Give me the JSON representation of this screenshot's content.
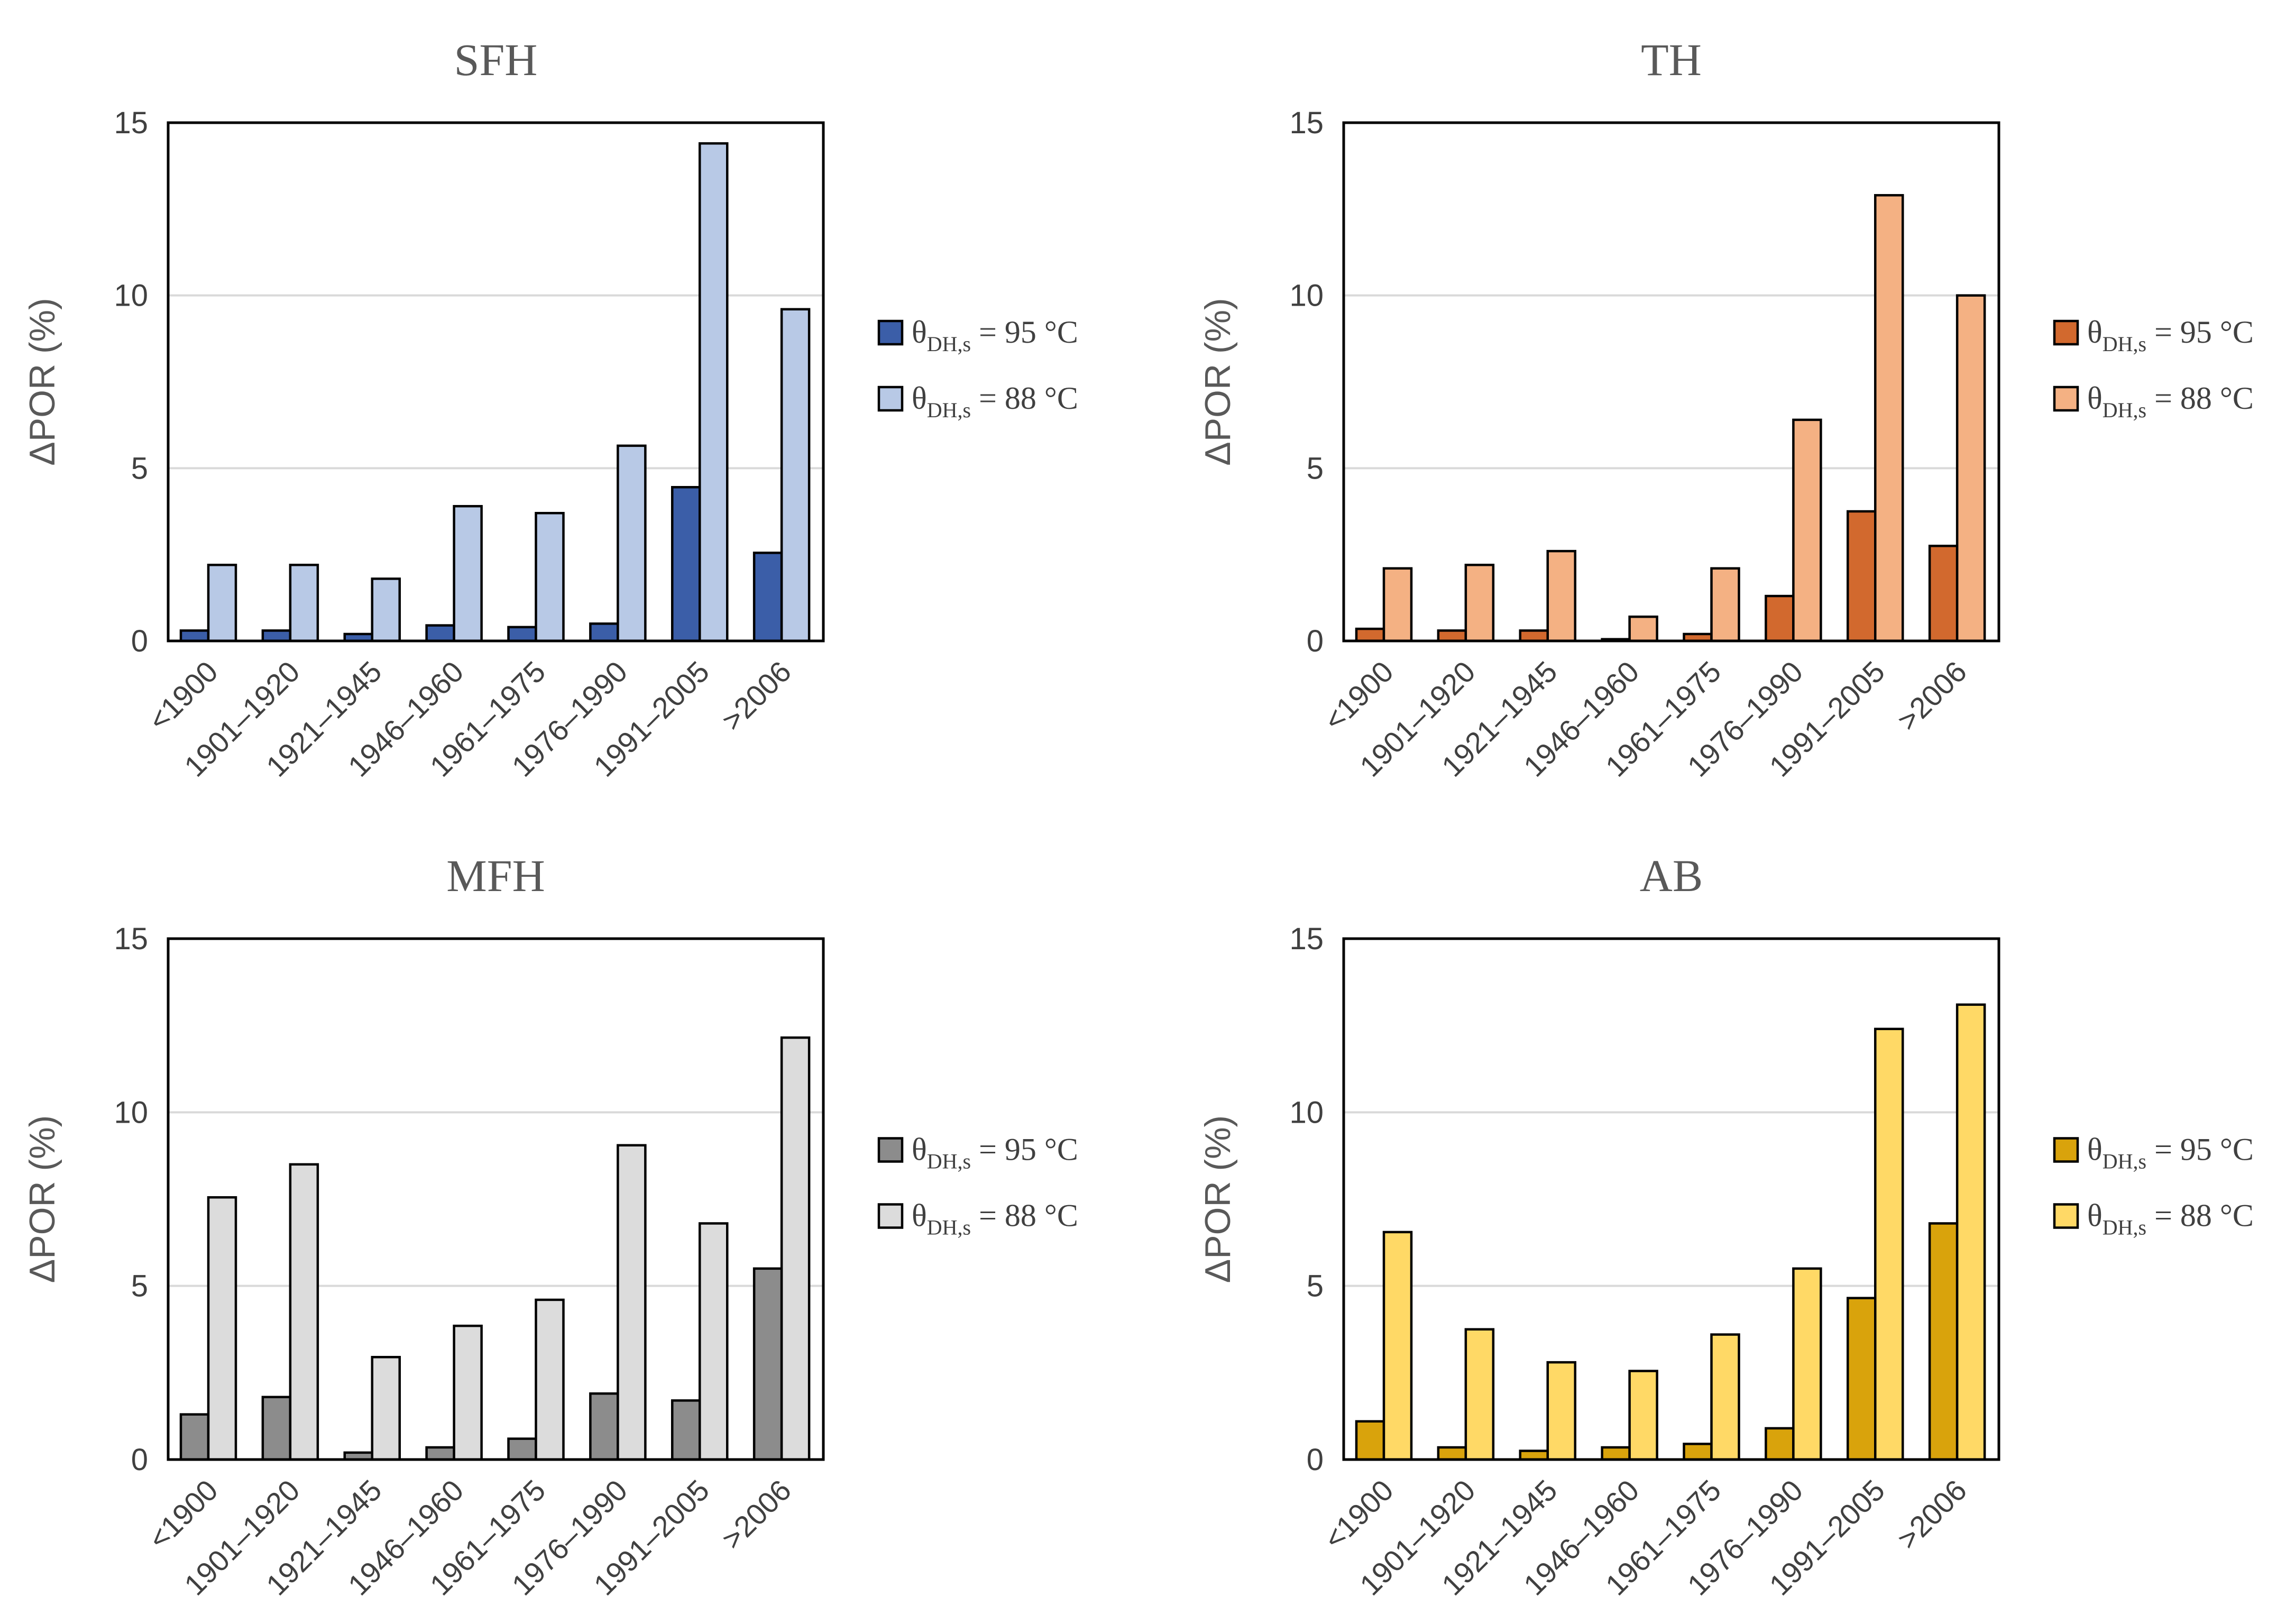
{
  "chart_data": [
    {
      "type": "bar",
      "title": "SFH",
      "ylabel": "ΔPOR (%)",
      "xlabel": "",
      "ylim": [
        0,
        15
      ],
      "yticks": [
        0,
        5,
        10,
        15
      ],
      "grid": true,
      "legend_position": "right",
      "categories": [
        "<1900",
        "1901–1920",
        "1921–1945",
        "1946–1960",
        "1961–1975",
        "1976–1990",
        "1991–2005",
        ">2006"
      ],
      "series": [
        {
          "name": "θDH,s = 95 °C",
          "legend": {
            "symbol": "θ",
            "sub": "DH,s",
            "rest": " = 95 °C"
          },
          "color": "#3b5ea8",
          "values": [
            0.3,
            0.3,
            0.2,
            0.45,
            0.4,
            0.5,
            4.45,
            2.55
          ]
        },
        {
          "name": "θDH,s = 88 °C",
          "legend": {
            "symbol": "θ",
            "sub": "DH,s",
            "rest": " = 88 °C"
          },
          "color": "#b8c9e6",
          "values": [
            2.2,
            2.2,
            1.8,
            3.9,
            3.7,
            5.65,
            14.4,
            9.6
          ]
        }
      ]
    },
    {
      "type": "bar",
      "title": "TH",
      "ylabel": "ΔPOR (%)",
      "xlabel": "",
      "ylim": [
        0,
        15
      ],
      "yticks": [
        0,
        5,
        10,
        15
      ],
      "grid": true,
      "legend_position": "right",
      "categories": [
        "<1900",
        "1901–1920",
        "1921–1945",
        "1946–1960",
        "1961–1975",
        "1976–1990",
        "1991–2005",
        ">2006"
      ],
      "series": [
        {
          "name": "θDH,s = 95 °C",
          "legend": {
            "symbol": "θ",
            "sub": "DH,s",
            "rest": " = 95 °C"
          },
          "color": "#d2692e",
          "values": [
            0.35,
            0.3,
            0.3,
            0.05,
            0.2,
            1.3,
            3.75,
            2.75
          ]
        },
        {
          "name": "θDH,s = 88 °C",
          "legend": {
            "symbol": "θ",
            "sub": "DH,s",
            "rest": " = 88 °C"
          },
          "color": "#f4b183",
          "values": [
            2.1,
            2.2,
            2.6,
            0.7,
            2.1,
            6.4,
            12.9,
            10.0
          ]
        }
      ]
    },
    {
      "type": "bar",
      "title": "MFH",
      "ylabel": "ΔPOR (%)",
      "xlabel": "",
      "ylim": [
        0,
        15
      ],
      "yticks": [
        0,
        5,
        10,
        15
      ],
      "grid": true,
      "legend_position": "right",
      "categories": [
        "<1900",
        "1901–1920",
        "1921–1945",
        "1946–1960",
        "1961–1975",
        "1976–1990",
        "1991–2005",
        ">2006"
      ],
      "series": [
        {
          "name": "θDH,s = 95 °C",
          "legend": {
            "symbol": "θ",
            "sub": "DH,s",
            "rest": " = 95 °C"
          },
          "color": "#8c8c8c",
          "values": [
            1.3,
            1.8,
            0.2,
            0.35,
            0.6,
            1.9,
            1.7,
            5.5
          ]
        },
        {
          "name": "θDH,s = 88 °C",
          "legend": {
            "symbol": "θ",
            "sub": "DH,s",
            "rest": " = 88 °C"
          },
          "color": "#dcdcdc",
          "values": [
            7.55,
            8.5,
            2.95,
            3.85,
            4.6,
            9.05,
            6.8,
            12.15
          ]
        }
      ]
    },
    {
      "type": "bar",
      "title": "AB",
      "ylabel": "ΔPOR (%)",
      "xlabel": "",
      "ylim": [
        0,
        15
      ],
      "yticks": [
        0,
        5,
        10,
        15
      ],
      "grid": true,
      "legend_position": "right",
      "categories": [
        "<1900",
        "1901–1920",
        "1921–1945",
        "1946–1960",
        "1961–1975",
        "1976–1990",
        "1991–2005",
        ">2006"
      ],
      "series": [
        {
          "name": "θDH,s = 95 °C",
          "legend": {
            "symbol": "θ",
            "sub": "DH,s",
            "rest": " = 95 °C"
          },
          "color": "#d9a30c",
          "values": [
            1.1,
            0.35,
            0.25,
            0.35,
            0.45,
            0.9,
            4.65,
            6.8
          ]
        },
        {
          "name": "θDH,s = 88 °C",
          "legend": {
            "symbol": "θ",
            "sub": "DH,s",
            "rest": " = 88 °C"
          },
          "color": "#ffd966",
          "values": [
            6.55,
            3.75,
            2.8,
            2.55,
            3.6,
            5.5,
            12.4,
            13.1
          ]
        }
      ]
    }
  ]
}
